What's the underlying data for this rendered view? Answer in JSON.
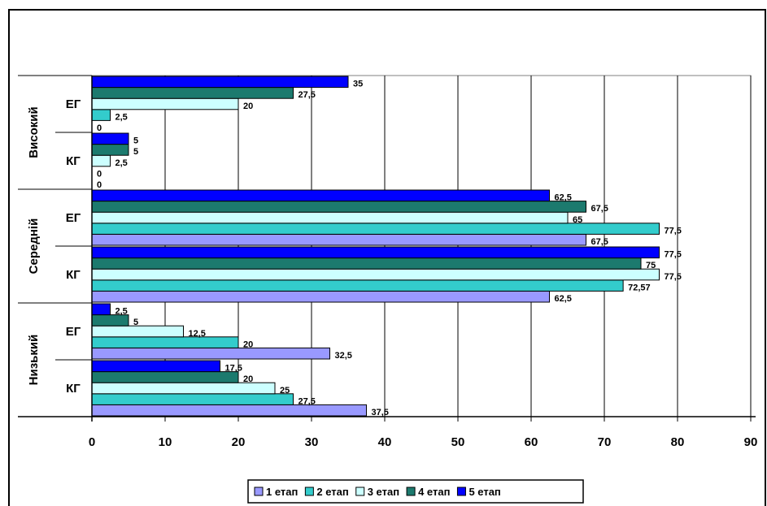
{
  "chart_data": {
    "type": "bar",
    "orientation": "horizontal",
    "title": "",
    "xlabel": "",
    "ylabel": "",
    "xlim": [
      0,
      90
    ],
    "x_ticks": [
      "0",
      "10",
      "20",
      "30",
      "40",
      "50",
      "60",
      "70",
      "80",
      "90"
    ],
    "grid": true,
    "legend_position": "bottom",
    "groups": [
      {
        "label": "Високий",
        "subgroups": [
          {
            "label": "ЕГ",
            "values": [
              null,
              2.5,
              20,
              27.5,
              35
            ],
            "value_labels": [
              "0",
              "2,5",
              "20",
              "27,5",
              "35"
            ]
          },
          {
            "label": "КГ",
            "values": [
              null,
              null,
              2.5,
              5,
              5
            ],
            "value_labels": [
              "0",
              "0",
              "2,5",
              "5",
              "5"
            ]
          }
        ]
      },
      {
        "label": "Середній",
        "subgroups": [
          {
            "label": "ЕГ",
            "values": [
              67.5,
              77.5,
              65,
              67.5,
              62.5
            ],
            "value_labels": [
              "67,5",
              "77,5",
              "65",
              "67,5",
              "62,5"
            ]
          },
          {
            "label": "КГ",
            "values": [
              62.5,
              72.57,
              77.5,
              75,
              77.5
            ],
            "value_labels": [
              "62,5",
              "72,57",
              "77,5",
              "75",
              "77,5"
            ]
          }
        ]
      },
      {
        "label": "Низький",
        "subgroups": [
          {
            "label": "ЕГ",
            "values": [
              32.5,
              20,
              12.5,
              5,
              2.5
            ],
            "value_labels": [
              "32,5",
              "20",
              "12,5",
              "5",
              "2,5"
            ]
          },
          {
            "label": "КГ",
            "values": [
              37.5,
              27.5,
              25,
              20,
              17.5
            ],
            "value_labels": [
              "37,5",
              "27,5",
              "25",
              "20",
              "17,5"
            ]
          }
        ]
      }
    ],
    "series": [
      {
        "name": "1 етап",
        "color": "#9999ff"
      },
      {
        "name": "2 етап",
        "color": "#33cccc"
      },
      {
        "name": "3 етап",
        "color": "#ccffff"
      },
      {
        "name": "4 етап",
        "color": "#1c7a6e"
      },
      {
        "name": "5 етап",
        "color": "#0000ff"
      }
    ]
  }
}
